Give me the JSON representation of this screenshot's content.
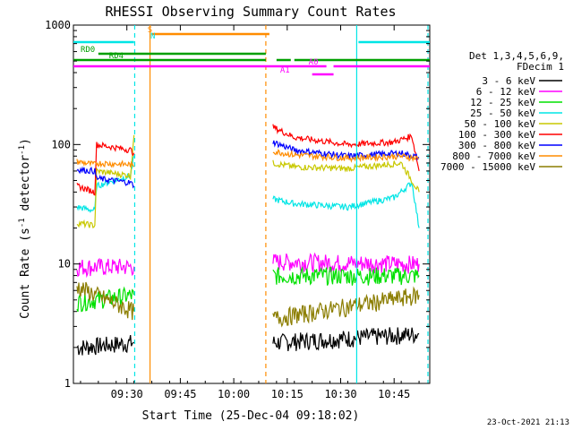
{
  "chart_data": {
    "type": "line",
    "title": "RHESSI Observing Summary Count Rates",
    "xlabel": "Start Time (25-Dec-04 09:18:02)",
    "ylabel_main": "Count Rate (s",
    "ylabel_sup": "-1",
    "ylabel_rest": " detector",
    "ylabel_sup2": "-1",
    "ylabel_end": ")",
    "timestamp": "23-Oct-2021 21:13",
    "x_range_min": [
      18,
      100
    ],
    "y_scale": "log",
    "ylim": [
      1,
      1000
    ],
    "y_ticks": [
      {
        "v": 1,
        "label": "1"
      },
      {
        "v": 10,
        "label": "10"
      },
      {
        "v": 100,
        "label": "100"
      },
      {
        "v": 1000,
        "label": "1000"
      }
    ],
    "x_ticks": [
      {
        "t": 33,
        "label": "09:30"
      },
      {
        "t": 48,
        "label": "09:45"
      },
      {
        "t": 63,
        "label": "10:00"
      },
      {
        "t": 78,
        "label": "10:15"
      },
      {
        "t": 93,
        "label": "10:30"
      },
      {
        "t": 108,
        "label": "10:45"
      }
    ],
    "legend_title": [
      "Det 1,3,4,5,6,9,",
      "FDecim 1"
    ],
    "series": [
      {
        "name": "3 - 6 keV",
        "color": "#000000",
        "segments": [
          {
            "x": [
              19,
              35
            ],
            "y": [
              2.0,
              2.2
            ]
          },
          {
            "x": [
              74,
              115
            ],
            "y": [
              2.2,
              2.6
            ]
          }
        ]
      },
      {
        "name": "6 - 12 keV",
        "color": "#ff00ff",
        "segments": [
          {
            "x": [
              19,
              35
            ],
            "y": [
              9.5,
              9.5
            ]
          },
          {
            "x": [
              74,
              115
            ],
            "y": [
              10.5,
              10
            ]
          }
        ]
      },
      {
        "name": "12 - 25 keV",
        "color": "#00e000",
        "segments": [
          {
            "x": [
              19,
              35
            ],
            "y": [
              4.8,
              5.5
            ]
          },
          {
            "x": [
              74,
              115
            ],
            "y": [
              8,
              8
            ]
          }
        ]
      },
      {
        "name": "25 - 50 keV",
        "color": "#00e5e5",
        "segments": [
          {
            "x": [
              19,
              24,
              24.5,
              34,
              35
            ],
            "y": [
              30,
              28,
              45,
              55,
              80
            ]
          },
          {
            "x": [
              74,
              80,
              95,
              108,
              113,
              115
            ],
            "y": [
              35,
              32,
              30,
              36,
              48,
              20
            ]
          }
        ]
      },
      {
        "name": "50 - 100 keV",
        "color": "#c8c800",
        "segments": [
          {
            "x": [
              19,
              24,
              24.5,
              34,
              35
            ],
            "y": [
              22,
              21,
              60,
              55,
              120
            ]
          },
          {
            "x": [
              74,
              80,
              95,
              110,
              115
            ],
            "y": [
              70,
              65,
              63,
              70,
              40
            ]
          }
        ]
      },
      {
        "name": "100 - 300 keV",
        "color": "#ff0000",
        "segments": [
          {
            "x": [
              19,
              24,
              24.5,
              34,
              35
            ],
            "y": [
              45,
              40,
              100,
              90,
              85
            ]
          },
          {
            "x": [
              74,
              80,
              95,
              108,
              113,
              115
            ],
            "y": [
              140,
              115,
              100,
              105,
              118,
              60
            ]
          }
        ]
      },
      {
        "name": "300 - 800 keV",
        "color": "#0000ff",
        "segments": [
          {
            "x": [
              19,
              24,
              24.5,
              34,
              35
            ],
            "y": [
              62,
              60,
              52,
              48,
              45
            ]
          },
          {
            "x": [
              74,
              80,
              95,
              110,
              115
            ],
            "y": [
              105,
              90,
              80,
              85,
              78
            ]
          }
        ]
      },
      {
        "name": "800 - 7000 keV",
        "color": "#ff8c00",
        "segments": [
          {
            "x": [
              19,
              24,
              24.5,
              34,
              35
            ],
            "y": [
              72,
              68,
              70,
              68,
              65
            ]
          },
          {
            "x": [
              74,
              80,
              95,
              110,
              115
            ],
            "y": [
              88,
              82,
              77,
              80,
              76
            ]
          }
        ]
      },
      {
        "name": "7000 - 15000 keV",
        "color": "#8b7d00",
        "segments": [
          {
            "x": [
              19,
              35
            ],
            "y": [
              6.5,
              4
            ]
          },
          {
            "x": [
              74,
              115
            ],
            "y": [
              3.5,
              5.5
            ]
          }
        ]
      }
    ],
    "vlines": [
      {
        "t": 35.2,
        "color": "#00e5e5",
        "dash": true
      },
      {
        "t": 39.5,
        "color": "#ff8c00",
        "dash": false
      },
      {
        "t": 72.0,
        "color": "#ff8c00",
        "dash": true
      },
      {
        "t": 97.5,
        "color": "#00e5e5",
        "dash": false
      },
      {
        "t": 117.5,
        "color": "#00e5e5",
        "dash": true
      }
    ],
    "bars": [
      {
        "label": "",
        "color": "#00e5e5",
        "y": 47,
        "ranges": [
          [
            18,
            35
          ],
          [
            98,
            118
          ]
        ]
      },
      {
        "label": "S",
        "color": "#ff8c00",
        "y": 38,
        "labels_t": 38.8,
        "ranges": [
          [
            40,
            73
          ]
        ]
      },
      {
        "label": "N",
        "color": "#00e5e5",
        "y": 45,
        "labels_t": 39.6,
        "ranges": []
      },
      {
        "label": "RD0",
        "color": "#00a000",
        "y": 60,
        "labels_t": 20,
        "ranges": [
          [
            25,
            72
          ]
        ]
      },
      {
        "label": "RD4",
        "color": "#00a000",
        "y": 67,
        "labels_t": 28,
        "ranges": [
          [
            18,
            72
          ],
          [
            75,
            79
          ],
          [
            80,
            118
          ]
        ]
      },
      {
        "label": "A0",
        "color": "#ff00ff",
        "y": 74,
        "labels_t": 84,
        "ranges": [
          [
            18,
            89
          ],
          [
            91,
            118
          ]
        ]
      },
      {
        "label": "A1",
        "color": "#ff00ff",
        "y": 83,
        "labels_t": 76,
        "ranges": [
          [
            85,
            91
          ]
        ]
      }
    ]
  }
}
